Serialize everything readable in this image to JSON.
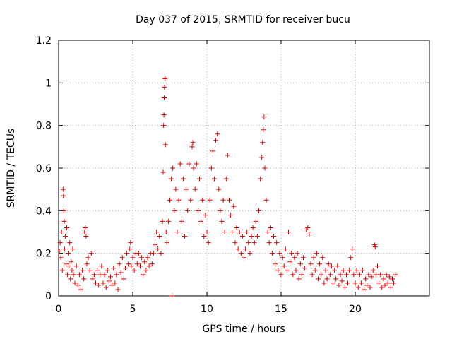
{
  "chart_data": {
    "type": "scatter",
    "title": "Day 037 of 2015, SRMTID for receiver bucu",
    "xlabel": "GPS time / hours",
    "ylabel": "SRMTID / TECUs",
    "xlim": [
      0,
      25
    ],
    "ylim": [
      0,
      1.2
    ],
    "x_ticks": [
      0,
      5,
      10,
      15,
      20
    ],
    "y_ticks": [
      0,
      0.2,
      0.4,
      0.6,
      0.8,
      1,
      1.2
    ],
    "grid": true,
    "marker": "+",
    "colors": {
      "series": "#e00000",
      "grid": "#a0a0a0",
      "axes": "#000000"
    },
    "series": [
      {
        "name": "SRMTID",
        "points": [
          [
            0.05,
            0.21
          ],
          [
            0.1,
            0.25
          ],
          [
            0.15,
            0.18
          ],
          [
            0.2,
            0.3
          ],
          [
            0.25,
            0.12
          ],
          [
            0.3,
            0.5
          ],
          [
            0.32,
            0.47
          ],
          [
            0.35,
            0.4
          ],
          [
            0.38,
            0.35
          ],
          [
            0.4,
            0.22
          ],
          [
            0.45,
            0.28
          ],
          [
            0.5,
            0.15
          ],
          [
            0.55,
            0.32
          ],
          [
            0.6,
            0.1
          ],
          [
            0.65,
            0.2
          ],
          [
            0.7,
            0.14
          ],
          [
            0.75,
            0.25
          ],
          [
            0.8,
            0.08
          ],
          [
            0.85,
            0.16
          ],
          [
            0.9,
            0.12
          ],
          [
            0.95,
            0.22
          ],
          [
            1.0,
            0.1
          ],
          [
            1.1,
            0.06
          ],
          [
            1.2,
            0.14
          ],
          [
            1.3,
            0.05
          ],
          [
            1.4,
            0.1
          ],
          [
            1.5,
            0.03
          ],
          [
            1.6,
            0.12
          ],
          [
            1.7,
            0.08
          ],
          [
            1.75,
            0.3
          ],
          [
            1.8,
            0.32
          ],
          [
            1.85,
            0.28
          ],
          [
            1.9,
            0.15
          ],
          [
            2.0,
            0.18
          ],
          [
            2.1,
            0.12
          ],
          [
            2.2,
            0.2
          ],
          [
            2.3,
            0.08
          ],
          [
            2.4,
            0.1
          ],
          [
            2.5,
            0.06
          ],
          [
            2.6,
            0.12
          ],
          [
            2.7,
            0.05
          ],
          [
            2.8,
            0.1
          ],
          [
            2.9,
            0.14
          ],
          [
            3.0,
            0.06
          ],
          [
            3.1,
            0.1
          ],
          [
            3.2,
            0.04
          ],
          [
            3.3,
            0.12
          ],
          [
            3.4,
            0.07
          ],
          [
            3.5,
            0.09
          ],
          [
            3.6,
            0.05
          ],
          [
            3.7,
            0.13
          ],
          [
            3.8,
            0.06
          ],
          [
            3.9,
            0.1
          ],
          [
            4.0,
            0.03
          ],
          [
            4.1,
            0.15
          ],
          [
            4.2,
            0.11
          ],
          [
            4.3,
            0.18
          ],
          [
            4.4,
            0.08
          ],
          [
            4.5,
            0.13
          ],
          [
            4.6,
            0.2
          ],
          [
            4.7,
            0.15
          ],
          [
            4.8,
            0.22
          ],
          [
            4.85,
            0.25
          ],
          [
            4.9,
            0.14
          ],
          [
            5.0,
            0.18
          ],
          [
            5.1,
            0.12
          ],
          [
            5.2,
            0.2
          ],
          [
            5.3,
            0.15
          ],
          [
            5.4,
            0.2
          ],
          [
            5.5,
            0.14
          ],
          [
            5.6,
            0.18
          ],
          [
            5.7,
            0.1
          ],
          [
            5.8,
            0.16
          ],
          [
            5.9,
            0.12
          ],
          [
            6.0,
            0.18
          ],
          [
            6.1,
            0.14
          ],
          [
            6.2,
            0.2
          ],
          [
            6.3,
            0.15
          ],
          [
            6.4,
            0.2
          ],
          [
            6.5,
            0.24
          ],
          [
            6.6,
            0.3
          ],
          [
            6.7,
            0.22
          ],
          [
            6.8,
            0.28
          ],
          [
            6.9,
            0.2
          ],
          [
            7.0,
            0.35
          ],
          [
            7.05,
            0.58
          ],
          [
            7.08,
            0.8
          ],
          [
            7.1,
            0.85
          ],
          [
            7.12,
            0.93
          ],
          [
            7.14,
            0.98
          ],
          [
            7.16,
            1.02
          ],
          [
            7.18,
            1.02
          ],
          [
            7.2,
            0.71
          ],
          [
            7.25,
            0.3
          ],
          [
            7.3,
            0.25
          ],
          [
            7.4,
            0.35
          ],
          [
            7.5,
            0.45
          ],
          [
            7.6,
            0.55
          ],
          [
            7.65,
            0.0
          ],
          [
            7.7,
            0.6
          ],
          [
            7.8,
            0.4
          ],
          [
            7.9,
            0.5
          ],
          [
            8.0,
            0.3
          ],
          [
            8.1,
            0.45
          ],
          [
            8.2,
            0.62
          ],
          [
            8.3,
            0.35
          ],
          [
            8.4,
            0.55
          ],
          [
            8.5,
            0.28
          ],
          [
            8.6,
            0.5
          ],
          [
            8.7,
            0.4
          ],
          [
            8.8,
            0.62
          ],
          [
            8.9,
            0.45
          ],
          [
            9.0,
            0.7
          ],
          [
            9.05,
            0.72
          ],
          [
            9.1,
            0.6
          ],
          [
            9.2,
            0.5
          ],
          [
            9.3,
            0.62
          ],
          [
            9.4,
            0.4
          ],
          [
            9.5,
            0.55
          ],
          [
            9.6,
            0.35
          ],
          [
            9.7,
            0.45
          ],
          [
            9.8,
            0.28
          ],
          [
            9.9,
            0.38
          ],
          [
            10.0,
            0.3
          ],
          [
            10.1,
            0.25
          ],
          [
            10.2,
            0.45
          ],
          [
            10.3,
            0.6
          ],
          [
            10.4,
            0.68
          ],
          [
            10.5,
            0.55
          ],
          [
            10.6,
            0.73
          ],
          [
            10.7,
            0.76
          ],
          [
            10.8,
            0.5
          ],
          [
            10.9,
            0.4
          ],
          [
            11.0,
            0.35
          ],
          [
            11.1,
            0.45
          ],
          [
            11.2,
            0.3
          ],
          [
            11.3,
            0.55
          ],
          [
            11.4,
            0.66
          ],
          [
            11.5,
            0.45
          ],
          [
            11.6,
            0.38
          ],
          [
            11.7,
            0.3
          ],
          [
            11.8,
            0.42
          ],
          [
            11.9,
            0.25
          ],
          [
            12.0,
            0.32
          ],
          [
            12.1,
            0.22
          ],
          [
            12.2,
            0.3
          ],
          [
            12.3,
            0.2
          ],
          [
            12.4,
            0.28
          ],
          [
            12.5,
            0.18
          ],
          [
            12.6,
            0.22
          ],
          [
            12.7,
            0.3
          ],
          [
            12.8,
            0.25
          ],
          [
            12.9,
            0.2
          ],
          [
            13.0,
            0.28
          ],
          [
            13.1,
            0.32
          ],
          [
            13.2,
            0.25
          ],
          [
            13.3,
            0.35
          ],
          [
            13.4,
            0.28
          ],
          [
            13.5,
            0.4
          ],
          [
            13.6,
            0.55
          ],
          [
            13.7,
            0.65
          ],
          [
            13.75,
            0.72
          ],
          [
            13.8,
            0.78
          ],
          [
            13.85,
            0.84
          ],
          [
            13.9,
            0.6
          ],
          [
            14.0,
            0.45
          ],
          [
            14.1,
            0.3
          ],
          [
            14.2,
            0.25
          ],
          [
            14.3,
            0.32
          ],
          [
            14.4,
            0.2
          ],
          [
            14.5,
            0.28
          ],
          [
            14.6,
            0.15
          ],
          [
            14.7,
            0.25
          ],
          [
            14.8,
            0.12
          ],
          [
            14.9,
            0.2
          ],
          [
            15.0,
            0.1
          ],
          [
            15.1,
            0.18
          ],
          [
            15.2,
            0.14
          ],
          [
            15.3,
            0.22
          ],
          [
            15.4,
            0.12
          ],
          [
            15.5,
            0.3
          ],
          [
            15.6,
            0.16
          ],
          [
            15.7,
            0.2
          ],
          [
            15.8,
            0.1
          ],
          [
            15.9,
            0.18
          ],
          [
            16.0,
            0.12
          ],
          [
            16.1,
            0.2
          ],
          [
            16.2,
            0.08
          ],
          [
            16.3,
            0.15
          ],
          [
            16.4,
            0.1
          ],
          [
            16.5,
            0.18
          ],
          [
            16.6,
            0.13
          ],
          [
            16.7,
            0.31
          ],
          [
            16.8,
            0.32
          ],
          [
            16.9,
            0.29
          ],
          [
            17.0,
            0.15
          ],
          [
            17.1,
            0.1
          ],
          [
            17.2,
            0.18
          ],
          [
            17.3,
            0.12
          ],
          [
            17.4,
            0.2
          ],
          [
            17.5,
            0.08
          ],
          [
            17.6,
            0.15
          ],
          [
            17.7,
            0.1
          ],
          [
            17.8,
            0.18
          ],
          [
            17.9,
            0.06
          ],
          [
            18.0,
            0.12
          ],
          [
            18.1,
            0.08
          ],
          [
            18.2,
            0.15
          ],
          [
            18.3,
            0.1
          ],
          [
            18.4,
            0.14
          ],
          [
            18.5,
            0.06
          ],
          [
            18.6,
            0.12
          ],
          [
            18.7,
            0.08
          ],
          [
            18.8,
            0.14
          ],
          [
            18.9,
            0.05
          ],
          [
            19.0,
            0.1
          ],
          [
            19.1,
            0.07
          ],
          [
            19.2,
            0.12
          ],
          [
            19.3,
            0.04
          ],
          [
            19.4,
            0.1
          ],
          [
            19.5,
            0.06
          ],
          [
            19.6,
            0.12
          ],
          [
            19.7,
            0.18
          ],
          [
            19.8,
            0.22
          ],
          [
            19.9,
            0.1
          ],
          [
            20.0,
            0.06
          ],
          [
            20.1,
            0.12
          ],
          [
            20.2,
            0.04
          ],
          [
            20.3,
            0.1
          ],
          [
            20.4,
            0.06
          ],
          [
            20.5,
            0.12
          ],
          [
            20.6,
            0.03
          ],
          [
            20.7,
            0.08
          ],
          [
            20.8,
            0.05
          ],
          [
            20.9,
            0.1
          ],
          [
            21.0,
            0.04
          ],
          [
            21.1,
            0.09
          ],
          [
            21.2,
            0.12
          ],
          [
            21.3,
            0.24
          ],
          [
            21.35,
            0.23
          ],
          [
            21.4,
            0.1
          ],
          [
            21.5,
            0.14
          ],
          [
            21.6,
            0.06
          ],
          [
            21.7,
            0.1
          ],
          [
            21.8,
            0.04
          ],
          [
            21.9,
            0.08
          ],
          [
            22.0,
            0.05
          ],
          [
            22.1,
            0.1
          ],
          [
            22.2,
            0.06
          ],
          [
            22.3,
            0.09
          ],
          [
            22.4,
            0.04
          ],
          [
            22.5,
            0.08
          ],
          [
            22.6,
            0.06
          ],
          [
            22.7,
            0.1
          ]
        ]
      }
    ]
  }
}
